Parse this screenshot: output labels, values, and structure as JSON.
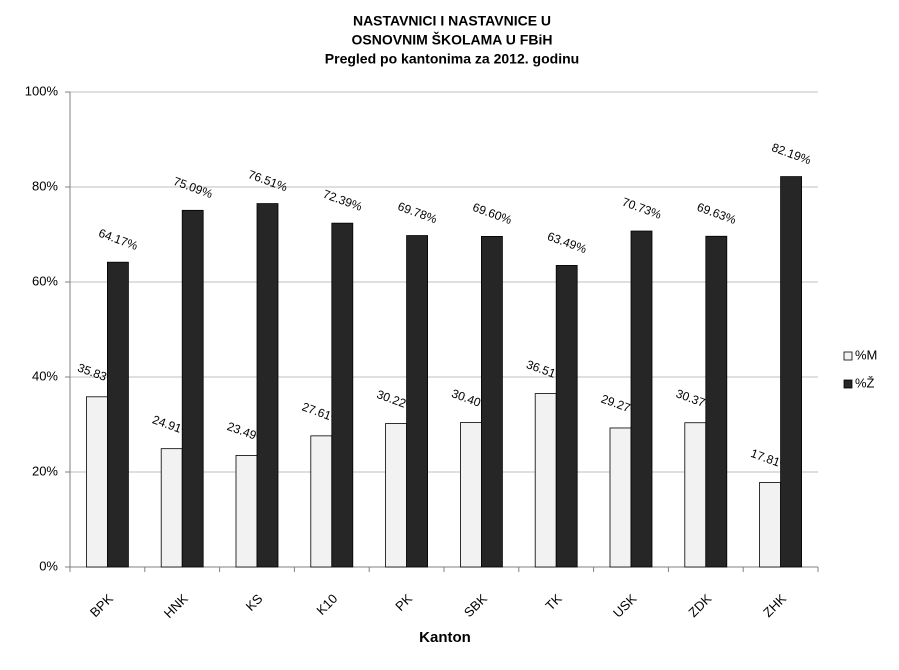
{
  "chart_data": {
    "type": "bar",
    "title": [
      "NASTAVNICI I NASTAVNICE U",
      "OSNOVNIM ŠKOLAMA U FBiH"
    ],
    "subtitle": "Pregled po kantonima za 2012. godinu",
    "x_label": "Kanton",
    "categories": [
      "BPK",
      "HNK",
      "KS",
      "K10",
      "PK",
      "SBK",
      "TK",
      "USK",
      "ZDK",
      "ZHK"
    ],
    "series": [
      {
        "name": "%M",
        "color": "#f2f2f2",
        "values": [
          35.83,
          24.91,
          23.49,
          27.61,
          30.22,
          30.4,
          36.51,
          29.27,
          30.37,
          17.81
        ],
        "value_labels": [
          "35.83%",
          "24.91%",
          "23.49%",
          "27.61%",
          "30.22%",
          "30.40%",
          "36.51%",
          "29.27%",
          "30.37%",
          "17.81%"
        ]
      },
      {
        "name": "%Ž",
        "color": "#262626",
        "values": [
          64.17,
          75.09,
          76.51,
          72.39,
          69.78,
          69.6,
          63.49,
          70.73,
          69.63,
          82.19
        ],
        "value_labels": [
          "64.17%",
          "75.09%",
          "76.51%",
          "72.39%",
          "69.78%",
          "69.60%",
          "63.49%",
          "70.73%",
          "69.63%",
          "82.19%"
        ]
      }
    ],
    "ylim": [
      0,
      100
    ],
    "yticks": [
      {
        "value": 0,
        "label": "0%"
      },
      {
        "value": 20,
        "label": "20%"
      },
      {
        "value": 40,
        "label": "40%"
      },
      {
        "value": 60,
        "label": "60%"
      },
      {
        "value": 80,
        "label": "80%"
      },
      {
        "value": 100,
        "label": "100%"
      }
    ],
    "grid": true,
    "legend": "right"
  }
}
